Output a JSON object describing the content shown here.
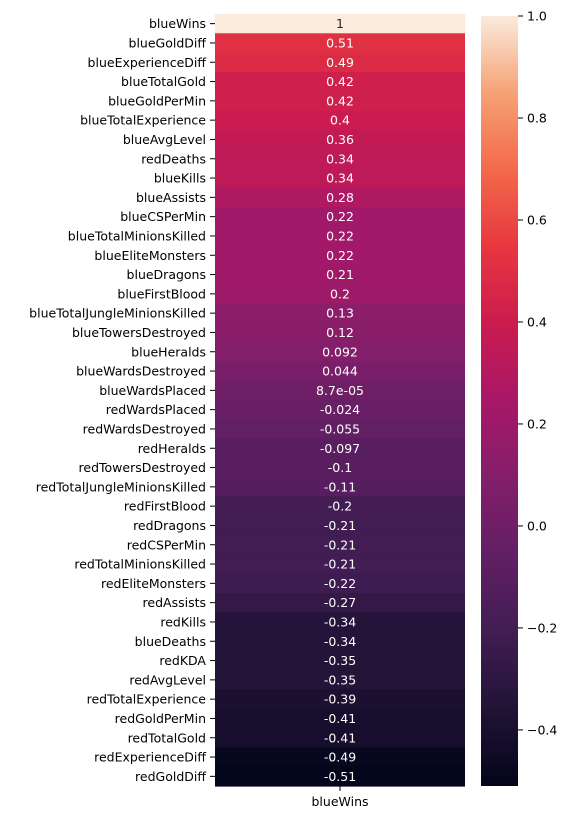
{
  "chart_data": {
    "type": "heatmap",
    "column": "blueWins",
    "rows": [
      {
        "label": "blueWins",
        "value": 1,
        "text": "1"
      },
      {
        "label": "blueGoldDiff",
        "value": 0.51,
        "text": "0.51"
      },
      {
        "label": "blueExperienceDiff",
        "value": 0.49,
        "text": "0.49"
      },
      {
        "label": "blueTotalGold",
        "value": 0.42,
        "text": "0.42"
      },
      {
        "label": "blueGoldPerMin",
        "value": 0.42,
        "text": "0.42"
      },
      {
        "label": "blueTotalExperience",
        "value": 0.4,
        "text": "0.4"
      },
      {
        "label": "blueAvgLevel",
        "value": 0.36,
        "text": "0.36"
      },
      {
        "label": "redDeaths",
        "value": 0.34,
        "text": "0.34"
      },
      {
        "label": "blueKills",
        "value": 0.34,
        "text": "0.34"
      },
      {
        "label": "blueAssists",
        "value": 0.28,
        "text": "0.28"
      },
      {
        "label": "blueCSPerMin",
        "value": 0.22,
        "text": "0.22"
      },
      {
        "label": "blueTotalMinionsKilled",
        "value": 0.22,
        "text": "0.22"
      },
      {
        "label": "blueEliteMonsters",
        "value": 0.22,
        "text": "0.22"
      },
      {
        "label": "blueDragons",
        "value": 0.21,
        "text": "0.21"
      },
      {
        "label": "blueFirstBlood",
        "value": 0.2,
        "text": "0.2"
      },
      {
        "label": "blueTotalJungleMinionsKilled",
        "value": 0.13,
        "text": "0.13"
      },
      {
        "label": "blueTowersDestroyed",
        "value": 0.12,
        "text": "0.12"
      },
      {
        "label": "blueHeralds",
        "value": 0.092,
        "text": "0.092"
      },
      {
        "label": "blueWardsDestroyed",
        "value": 0.044,
        "text": "0.044"
      },
      {
        "label": "blueWardsPlaced",
        "value": 8.7e-05,
        "text": "8.7e-05"
      },
      {
        "label": "redWardsPlaced",
        "value": -0.024,
        "text": "-0.024"
      },
      {
        "label": "redWardsDestroyed",
        "value": -0.055,
        "text": "-0.055"
      },
      {
        "label": "redHeralds",
        "value": -0.097,
        "text": "-0.097"
      },
      {
        "label": "redTowersDestroyed",
        "value": -0.1,
        "text": "-0.1"
      },
      {
        "label": "redTotalJungleMinionsKilled",
        "value": -0.11,
        "text": "-0.11"
      },
      {
        "label": "redFirstBlood",
        "value": -0.2,
        "text": "-0.2"
      },
      {
        "label": "redDragons",
        "value": -0.21,
        "text": "-0.21"
      },
      {
        "label": "redCSPerMin",
        "value": -0.21,
        "text": "-0.21"
      },
      {
        "label": "redTotalMinionsKilled",
        "value": -0.21,
        "text": "-0.21"
      },
      {
        "label": "redEliteMonsters",
        "value": -0.22,
        "text": "-0.22"
      },
      {
        "label": "redAssists",
        "value": -0.27,
        "text": "-0.27"
      },
      {
        "label": "redKills",
        "value": -0.34,
        "text": "-0.34"
      },
      {
        "label": "blueDeaths",
        "value": -0.34,
        "text": "-0.34"
      },
      {
        "label": "redKDA",
        "value": -0.35,
        "text": "-0.35"
      },
      {
        "label": "redAvgLevel",
        "value": -0.35,
        "text": "-0.35"
      },
      {
        "label": "redTotalExperience",
        "value": -0.39,
        "text": "-0.39"
      },
      {
        "label": "redGoldPerMin",
        "value": -0.41,
        "text": "-0.41"
      },
      {
        "label": "redTotalGold",
        "value": -0.41,
        "text": "-0.41"
      },
      {
        "label": "redExperienceDiff",
        "value": -0.49,
        "text": "-0.49"
      },
      {
        "label": "redGoldDiff",
        "value": -0.51,
        "text": "-0.51"
      }
    ],
    "colorbar": {
      "range": [
        -0.51,
        1.0
      ],
      "ticks": [
        {
          "value": 1.0,
          "label": "1.0"
        },
        {
          "value": 0.8,
          "label": "0.8"
        },
        {
          "value": 0.6,
          "label": "0.6"
        },
        {
          "value": 0.4,
          "label": "0.4"
        },
        {
          "value": 0.2,
          "label": "0.2"
        },
        {
          "value": 0.0,
          "label": "0.0"
        },
        {
          "value": -0.2,
          "label": "−0.2"
        },
        {
          "value": -0.4,
          "label": "−0.4"
        }
      ],
      "colormap": "rocket"
    }
  }
}
